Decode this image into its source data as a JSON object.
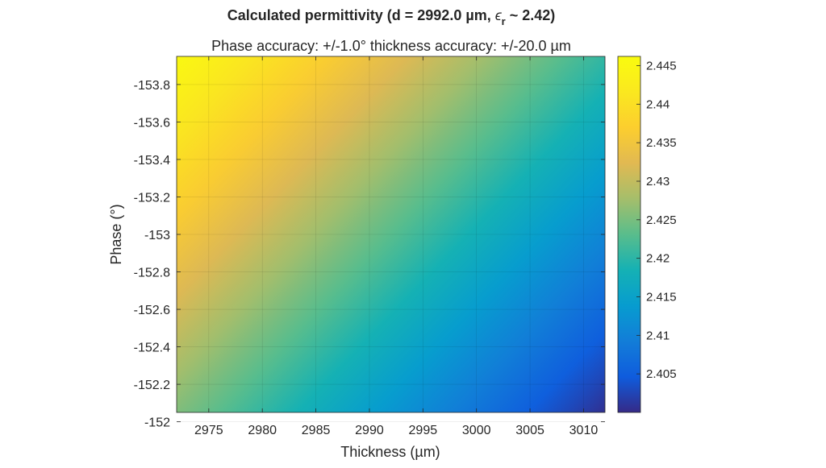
{
  "chart_data": {
    "type": "heatmap",
    "title_prefix": "Calculated permittivity (d = 2992.0 µm, ",
    "title_symbol": "ϵ",
    "title_subscript": "r",
    "title_suffix": " ~ 2.42)",
    "subtitle": "Phase accuracy: +/-1.0° thickness accuracy: +/-20.0 µm",
    "xlabel": "Thickness (µm)",
    "ylabel": "Phase (°)",
    "xlim": [
      2972,
      3012
    ],
    "ylim": [
      -152.05,
      -153.95
    ],
    "x_ticks": [
      2975,
      2980,
      2985,
      2990,
      2995,
      3000,
      3005,
      3010
    ],
    "x_tick_labels": [
      "2975",
      "2980",
      "2985",
      "2990",
      "2995",
      "3000",
      "3005",
      "3010"
    ],
    "y_ticks": [
      -153.8,
      -153.6,
      -153.4,
      -153.2,
      -153,
      -152.8,
      -152.6,
      -152.4,
      -152.2,
      -152
    ],
    "y_tick_labels": [
      "-153.8",
      "-153.6",
      "-153.4",
      "-153.2",
      "-153",
      "-152.8",
      "-152.6",
      "-152.4",
      "-152.2",
      "-152"
    ],
    "grid": true,
    "colormap": "parula",
    "colorbar": {
      "clim": [
        2.4,
        2.4462
      ],
      "ticks": [
        2.405,
        2.41,
        2.415,
        2.42,
        2.425,
        2.43,
        2.435,
        2.44,
        2.445
      ],
      "tick_labels": [
        "2.405",
        "2.41",
        "2.415",
        "2.42",
        "2.425",
        "2.43",
        "2.435",
        "2.44",
        "2.445"
      ]
    },
    "corner_values": {
      "x_min_y_top": 2.4455,
      "x_max_y_top": 2.4205,
      "x_min_y_bottom": 2.4255,
      "x_max_y_bottom": 2.4005
    }
  }
}
